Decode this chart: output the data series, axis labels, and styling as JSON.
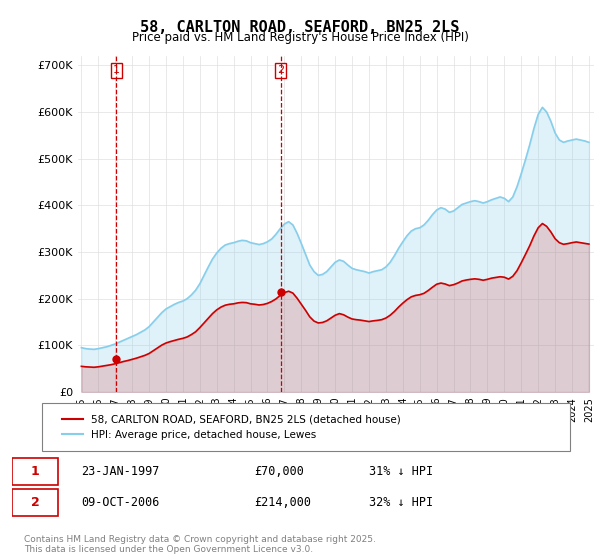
{
  "title": "58, CARLTON ROAD, SEAFORD, BN25 2LS",
  "subtitle": "Price paid vs. HM Land Registry's House Price Index (HPI)",
  "ylim": [
    0,
    720000
  ],
  "yticks": [
    0,
    100000,
    200000,
    300000,
    400000,
    500000,
    600000,
    700000
  ],
  "ytick_labels": [
    "£0",
    "£100K",
    "£200K",
    "£300K",
    "£400K",
    "£500K",
    "£600K",
    "£700K"
  ],
  "hpi_color": "#87CEEB",
  "property_color": "#CC0000",
  "marker_color": "#CC0000",
  "vline_color": "#CC0000",
  "grid_color": "#E0E0E0",
  "legend_label_property": "58, CARLTON ROAD, SEAFORD, BN25 2LS (detached house)",
  "legend_label_hpi": "HPI: Average price, detached house, Lewes",
  "transaction1_label": "1",
  "transaction1_date": "23-JAN-1997",
  "transaction1_price": "£70,000",
  "transaction1_hpi": "31% ↓ HPI",
  "transaction1_year": 1997.06,
  "transaction1_value": 70000,
  "transaction2_label": "2",
  "transaction2_date": "09-OCT-2006",
  "transaction2_price": "£214,000",
  "transaction2_hpi": "32% ↓ HPI",
  "transaction2_year": 2006.78,
  "transaction2_value": 214000,
  "footnote": "Contains HM Land Registry data © Crown copyright and database right 2025.\nThis data is licensed under the Open Government Licence v3.0.",
  "hpi_data_x": [
    1995.0,
    1995.25,
    1995.5,
    1995.75,
    1996.0,
    1996.25,
    1996.5,
    1996.75,
    1997.0,
    1997.25,
    1997.5,
    1997.75,
    1998.0,
    1998.25,
    1998.5,
    1998.75,
    1999.0,
    1999.25,
    1999.5,
    1999.75,
    2000.0,
    2000.25,
    2000.5,
    2000.75,
    2001.0,
    2001.25,
    2001.5,
    2001.75,
    2002.0,
    2002.25,
    2002.5,
    2002.75,
    2003.0,
    2003.25,
    2003.5,
    2003.75,
    2004.0,
    2004.25,
    2004.5,
    2004.75,
    2005.0,
    2005.25,
    2005.5,
    2005.75,
    2006.0,
    2006.25,
    2006.5,
    2006.75,
    2007.0,
    2007.25,
    2007.5,
    2007.75,
    2008.0,
    2008.25,
    2008.5,
    2008.75,
    2009.0,
    2009.25,
    2009.5,
    2009.75,
    2010.0,
    2010.25,
    2010.5,
    2010.75,
    2011.0,
    2011.25,
    2011.5,
    2011.75,
    2012.0,
    2012.25,
    2012.5,
    2012.75,
    2013.0,
    2013.25,
    2013.5,
    2013.75,
    2014.0,
    2014.25,
    2014.5,
    2014.75,
    2015.0,
    2015.25,
    2015.5,
    2015.75,
    2016.0,
    2016.25,
    2016.5,
    2016.75,
    2017.0,
    2017.25,
    2017.5,
    2017.75,
    2018.0,
    2018.25,
    2018.5,
    2018.75,
    2019.0,
    2019.25,
    2019.5,
    2019.75,
    2020.0,
    2020.25,
    2020.5,
    2020.75,
    2021.0,
    2021.25,
    2021.5,
    2021.75,
    2022.0,
    2022.25,
    2022.5,
    2022.75,
    2023.0,
    2023.25,
    2023.5,
    2023.75,
    2024.0,
    2024.25,
    2024.5,
    2024.75,
    2025.0
  ],
  "hpi_data_y": [
    95000,
    93000,
    92000,
    91500,
    93000,
    95000,
    97000,
    100000,
    103000,
    107000,
    111000,
    115000,
    119000,
    123000,
    128000,
    133000,
    140000,
    150000,
    160000,
    170000,
    178000,
    183000,
    188000,
    192000,
    195000,
    200000,
    208000,
    218000,
    232000,
    250000,
    268000,
    285000,
    298000,
    308000,
    315000,
    318000,
    320000,
    323000,
    325000,
    324000,
    320000,
    318000,
    316000,
    318000,
    322000,
    328000,
    338000,
    350000,
    360000,
    365000,
    358000,
    340000,
    318000,
    295000,
    272000,
    258000,
    250000,
    252000,
    258000,
    268000,
    278000,
    283000,
    280000,
    272000,
    265000,
    262000,
    260000,
    258000,
    255000,
    258000,
    260000,
    262000,
    268000,
    278000,
    292000,
    308000,
    322000,
    335000,
    345000,
    350000,
    352000,
    358000,
    368000,
    380000,
    390000,
    395000,
    392000,
    385000,
    388000,
    395000,
    402000,
    405000,
    408000,
    410000,
    408000,
    405000,
    408000,
    412000,
    415000,
    418000,
    415000,
    408000,
    418000,
    440000,
    468000,
    498000,
    530000,
    565000,
    595000,
    610000,
    600000,
    580000,
    555000,
    540000,
    535000,
    538000,
    540000,
    542000,
    540000,
    538000,
    535000
  ],
  "property_data_x": [
    1995.0,
    1995.25,
    1995.5,
    1995.75,
    1996.0,
    1996.25,
    1996.5,
    1996.75,
    1997.0,
    1997.25,
    1997.5,
    1997.75,
    1998.0,
    1998.25,
    1998.5,
    1998.75,
    1999.0,
    1999.25,
    1999.5,
    1999.75,
    2000.0,
    2000.25,
    2000.5,
    2000.75,
    2001.0,
    2001.25,
    2001.5,
    2001.75,
    2002.0,
    2002.25,
    2002.5,
    2002.75,
    2003.0,
    2003.25,
    2003.5,
    2003.75,
    2004.0,
    2004.25,
    2004.5,
    2004.75,
    2005.0,
    2005.25,
    2005.5,
    2005.75,
    2006.0,
    2006.25,
    2006.5,
    2006.75,
    2007.0,
    2007.25,
    2007.5,
    2007.75,
    2008.0,
    2008.25,
    2008.5,
    2008.75,
    2009.0,
    2009.25,
    2009.5,
    2009.75,
    2010.0,
    2010.25,
    2010.5,
    2010.75,
    2011.0,
    2011.25,
    2011.5,
    2011.75,
    2012.0,
    2012.25,
    2012.5,
    2012.75,
    2013.0,
    2013.25,
    2013.5,
    2013.75,
    2014.0,
    2014.25,
    2014.5,
    2014.75,
    2015.0,
    2015.25,
    2015.5,
    2015.75,
    2016.0,
    2016.25,
    2016.5,
    2016.75,
    2017.0,
    2017.25,
    2017.5,
    2017.75,
    2018.0,
    2018.25,
    2018.5,
    2018.75,
    2019.0,
    2019.25,
    2019.5,
    2019.75,
    2020.0,
    2020.25,
    2020.5,
    2020.75,
    2021.0,
    2021.25,
    2021.5,
    2021.75,
    2022.0,
    2022.25,
    2022.5,
    2022.75,
    2023.0,
    2023.25,
    2023.5,
    2023.75,
    2024.0,
    2024.25,
    2024.5,
    2024.75,
    2025.0
  ],
  "property_data_y": [
    55000,
    54000,
    53500,
    53000,
    54000,
    55500,
    57000,
    58500,
    60500,
    63000,
    65500,
    67500,
    70000,
    72500,
    75500,
    78500,
    82500,
    88500,
    94500,
    100500,
    105000,
    108000,
    110500,
    113000,
    115000,
    118000,
    123000,
    129000,
    138000,
    148000,
    158000,
    168000,
    176000,
    182000,
    186000,
    188000,
    189000,
    191000,
    192000,
    191500,
    189000,
    188000,
    186500,
    187500,
    190000,
    194000,
    199500,
    207000,
    213000,
    216000,
    212000,
    201000,
    188000,
    175000,
    161000,
    152000,
    148000,
    149000,
    152500,
    158500,
    164500,
    168000,
    165500,
    160500,
    156500,
    155000,
    154000,
    152500,
    151000,
    152500,
    153500,
    155000,
    158500,
    164500,
    172500,
    182000,
    190500,
    198000,
    204000,
    207000,
    208500,
    211500,
    217500,
    224500,
    231000,
    233500,
    231500,
    228000,
    230000,
    233500,
    238000,
    240000,
    241500,
    242500,
    241500,
    239500,
    241500,
    244000,
    245500,
    247000,
    246000,
    242000,
    248000,
    260000,
    277000,
    295000,
    313500,
    334500,
    352000,
    361000,
    355000,
    343000,
    328500,
    320000,
    316500,
    318000,
    320000,
    321500,
    320000,
    318500,
    317000
  ]
}
